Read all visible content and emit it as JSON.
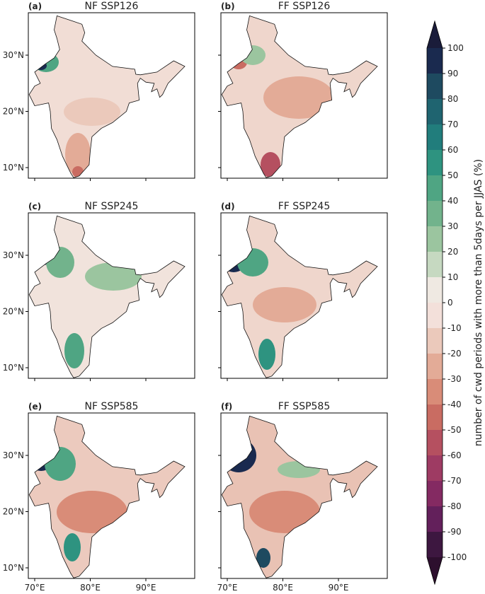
{
  "panels": [
    {
      "label": "(a)",
      "title": "NF SSP126"
    },
    {
      "label": "(b)",
      "title": "FF SSP126"
    },
    {
      "label": "(c)",
      "title": "NF SSP245"
    },
    {
      "label": "(d)",
      "title": "FF SSP245"
    },
    {
      "label": "(e)",
      "title": "NF SSP585"
    },
    {
      "label": "(f)",
      "title": "FF SSP585"
    }
  ],
  "lat_ticks": [
    {
      "value": 30,
      "label": "30°N"
    },
    {
      "value": 20,
      "label": "20°N"
    },
    {
      "value": 10,
      "label": "10°N"
    }
  ],
  "lon_ticks": [
    {
      "value": 70,
      "label": "70°E"
    },
    {
      "value": 80,
      "label": "80°E"
    },
    {
      "value": 90,
      "label": "90°E"
    }
  ],
  "colorbar": {
    "label": "number of cwd periods with more than 5days per JJAS (%)",
    "ticks": [
      -100,
      -90,
      -80,
      -70,
      -60,
      -50,
      -40,
      -30,
      -20,
      -10,
      0,
      10,
      20,
      30,
      40,
      50,
      60,
      70,
      80,
      90,
      100
    ],
    "colors": [
      "#3d1740",
      "#63205b",
      "#842a62",
      "#9e3b63",
      "#b55060",
      "#c96c62",
      "#d98c78",
      "#e3ab97",
      "#ebc9bb",
      "#f3e0da",
      "#efe9e2",
      "#c6d9c1",
      "#9bc59f",
      "#72b38c",
      "#4fa583",
      "#2e9380",
      "#217d7c",
      "#1f6470",
      "#1e4a60",
      "#1a2a4f"
    ],
    "under_color": "#2d0f2e",
    "over_color": "#1a1c3a"
  }
}
